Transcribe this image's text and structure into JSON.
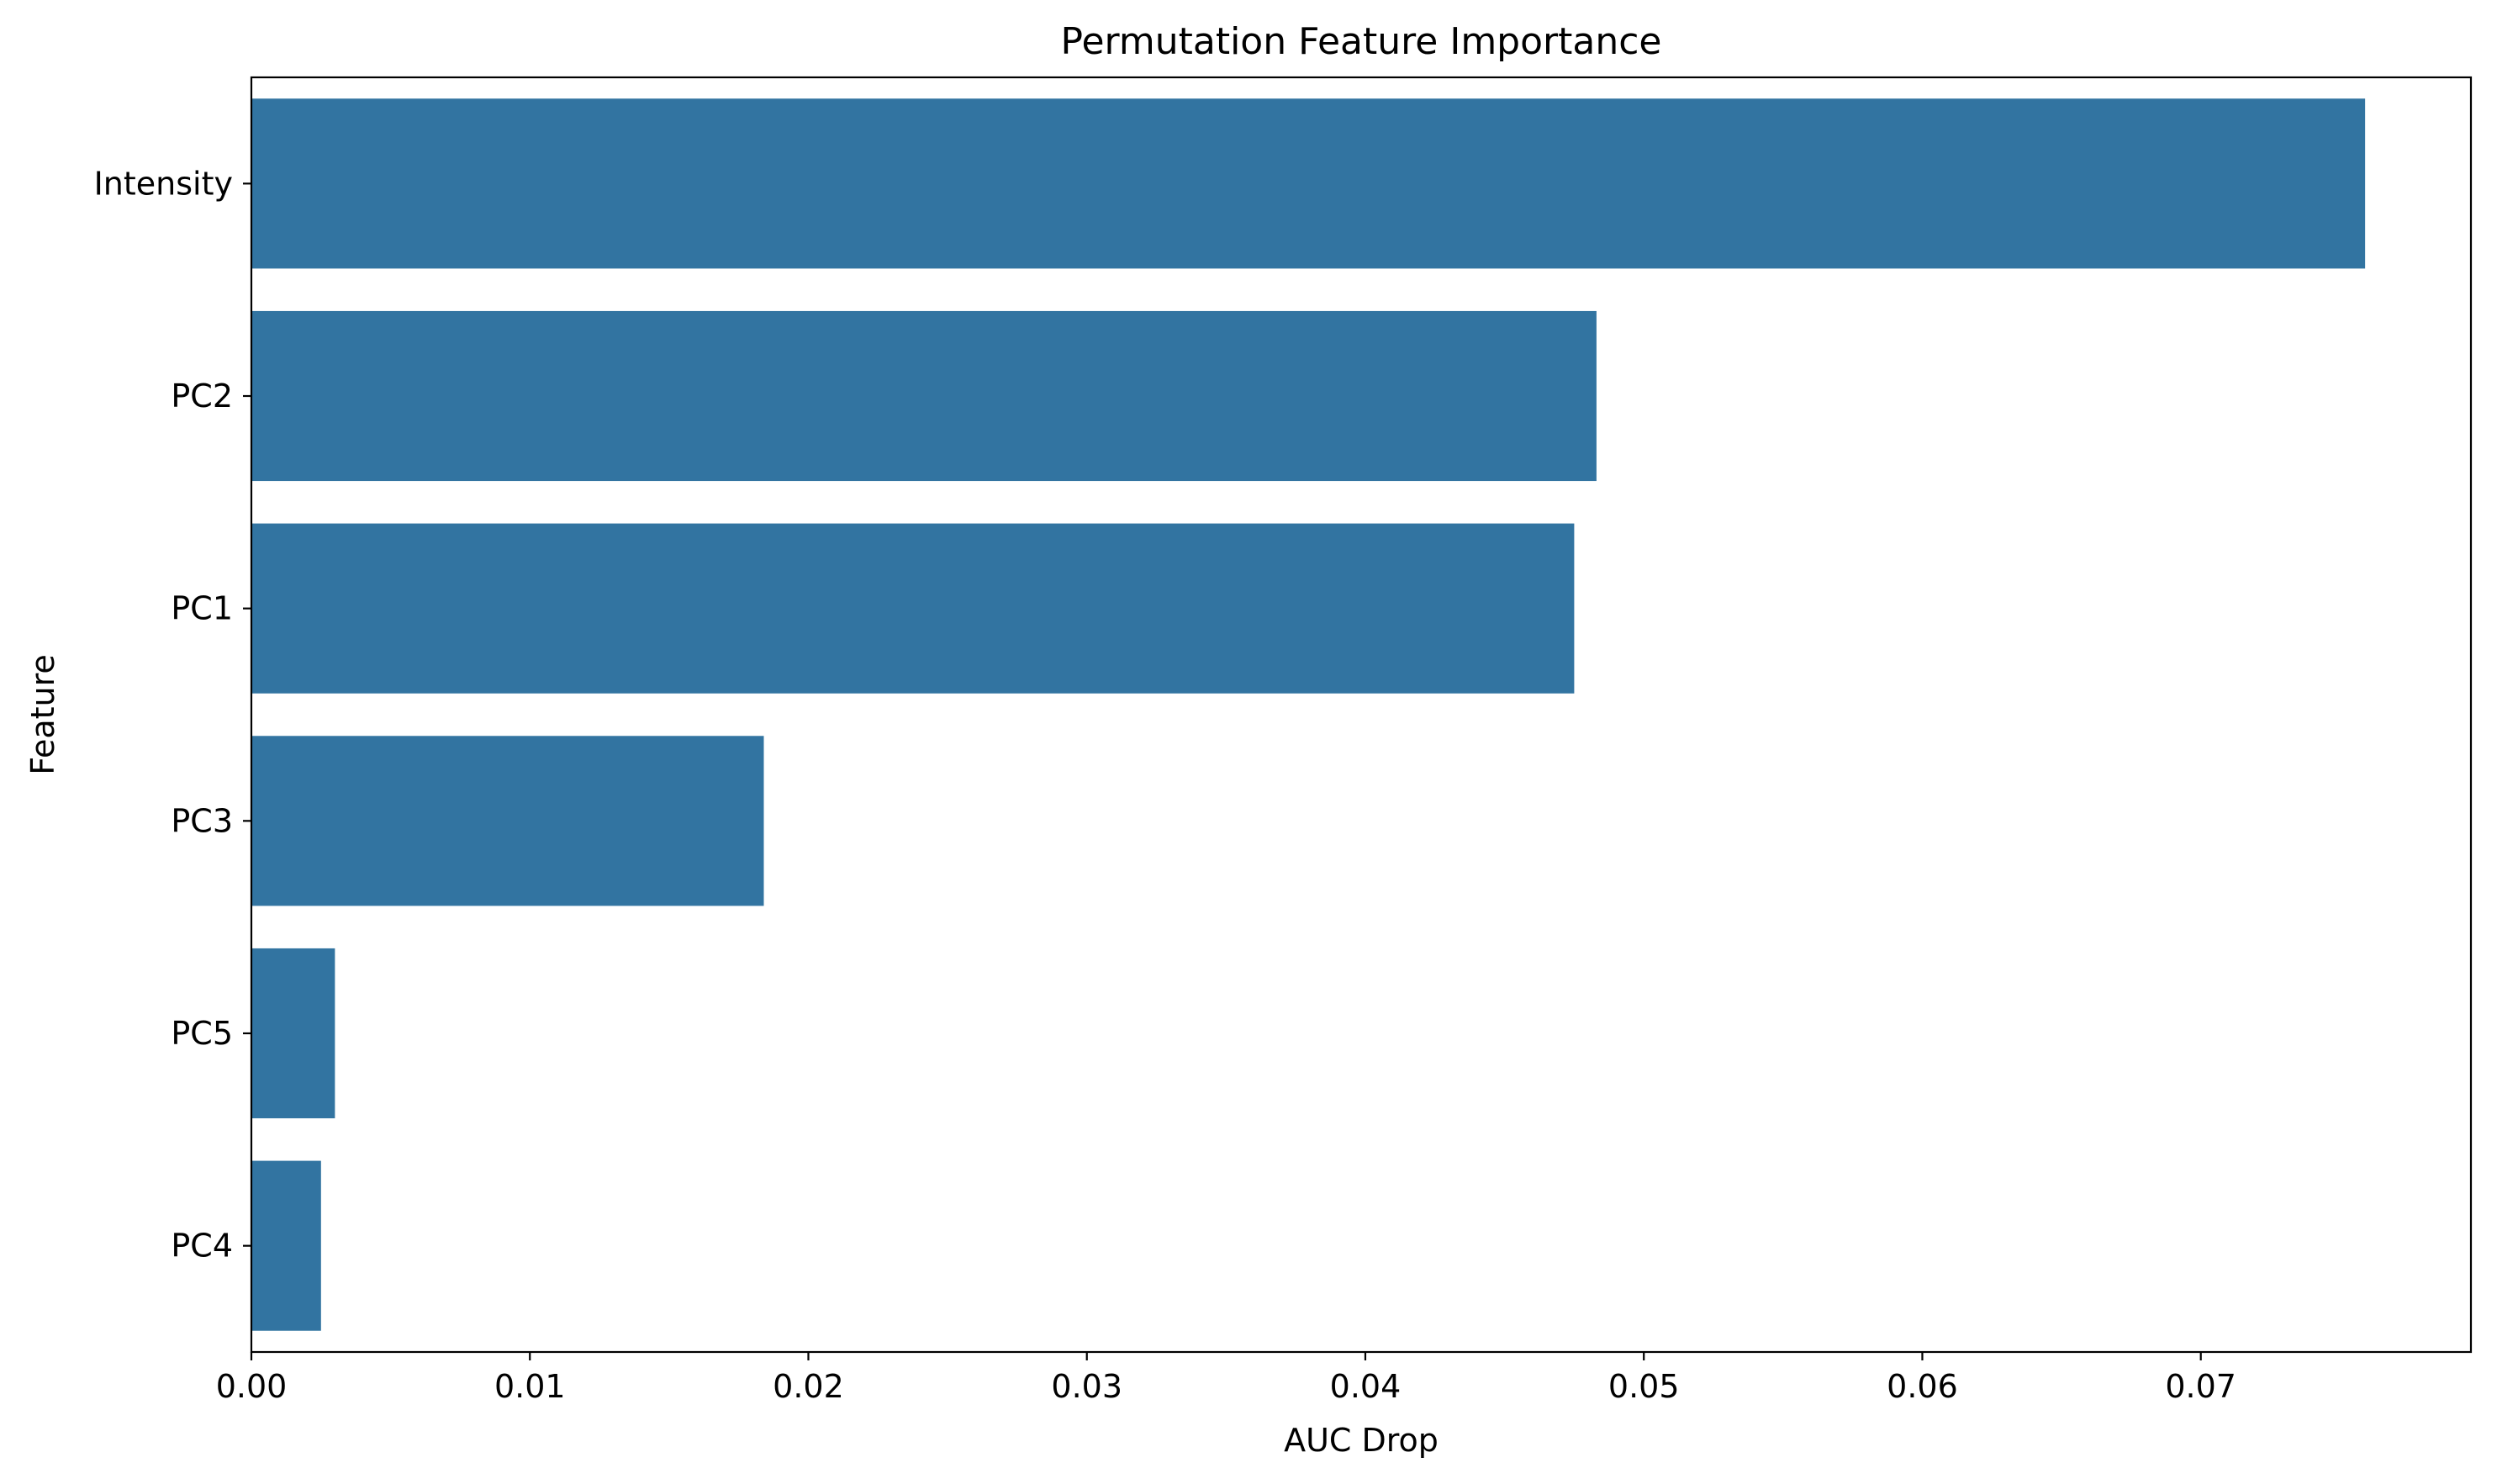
{
  "chart_data": {
    "type": "bar",
    "orientation": "horizontal",
    "title": "Permutation Feature Importance",
    "xlabel": "AUC Drop",
    "ylabel": "Feature",
    "categories": [
      "Intensity",
      "PC2",
      "PC1",
      "PC3",
      "PC5",
      "PC4"
    ],
    "values": [
      0.0759,
      0.0483,
      0.0475,
      0.0184,
      0.003,
      0.0025
    ],
    "xlim": [
      0,
      0.0797
    ],
    "xticks": [
      0.0,
      0.01,
      0.02,
      0.03,
      0.04,
      0.05,
      0.06,
      0.07
    ],
    "xtick_labels": [
      "0.00",
      "0.01",
      "0.02",
      "0.03",
      "0.04",
      "0.05",
      "0.06",
      "0.07"
    ],
    "grid": false,
    "bar_color": "#3274a1"
  }
}
